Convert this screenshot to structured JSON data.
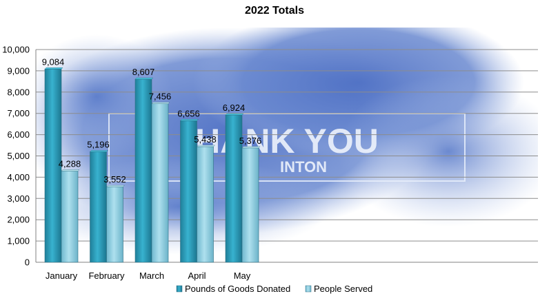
{
  "chart_data": {
    "type": "bar",
    "title": "2022 Totals",
    "categories": [
      "January",
      "February",
      "March",
      "April",
      "May"
    ],
    "series": [
      {
        "name": "Pounds of Goods Donated",
        "values": [
          9084,
          5196,
          8607,
          6656,
          6924
        ],
        "color": "#2a9cb8"
      },
      {
        "name": "People Served",
        "values": [
          4288,
          3552,
          7456,
          5438,
          5376
        ],
        "color": "#8ecde0"
      }
    ],
    "data_labels": [
      [
        "9,084",
        "5,196",
        "8,607",
        "6,656",
        "6,924"
      ],
      [
        "4,288",
        "3,552",
        "7,456",
        "5,438",
        "5,376"
      ]
    ],
    "y_ticks": [
      0,
      1000,
      2000,
      3000,
      4000,
      5000,
      6000,
      7000,
      8000,
      9000,
      10000
    ],
    "y_tick_labels": [
      "0",
      "1,000",
      "2,000",
      "3,000",
      "4,000",
      "5,000",
      "6,000",
      "7,000",
      "8,000",
      "9,000",
      "10,000"
    ],
    "ylim": [
      0,
      10000
    ],
    "xlabel": "",
    "ylabel": "",
    "grid": true,
    "legend_position": "bottom",
    "background_image": {
      "description_colors": [
        "#4a6fc2",
        "#8aa3dc"
      ],
      "banner_text_line1": "HANK YOU",
      "banner_text_line2": "INTON"
    }
  }
}
